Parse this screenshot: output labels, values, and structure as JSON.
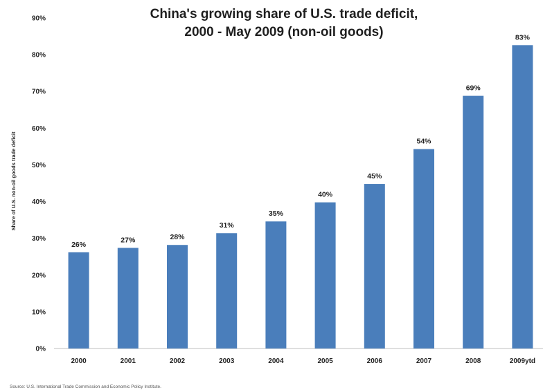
{
  "chart_data": {
    "type": "bar",
    "title_lines": [
      "China's  growing share of U.S. trade deficit,",
      "2000 - May 2009 (non-oil goods)"
    ],
    "ylabel": "Share of U.S. non-oil goods trade deficit",
    "xlabel": "",
    "ylim": [
      0,
      90
    ],
    "yticks": [
      "0%",
      "10%",
      "20%",
      "30%",
      "40%",
      "50%",
      "60%",
      "70%",
      "80%",
      "90%"
    ],
    "categories": [
      "2000",
      "2001",
      "2002",
      "2003",
      "2004",
      "2005",
      "2006",
      "2007",
      "2008",
      "2009ytd"
    ],
    "values": [
      26,
      27,
      28,
      31,
      35,
      40,
      45,
      54,
      69,
      83
    ],
    "data_labels": [
      "26%",
      "27%",
      "28%",
      "31%",
      "35%",
      "40%",
      "45%",
      "54%",
      "69%",
      "83%"
    ],
    "bar_values_exact": [
      26.2,
      27.4,
      28.2,
      31.4,
      34.6,
      39.8,
      44.8,
      54.3,
      68.8,
      82.6
    ],
    "bar_color": "#4a7ebb",
    "grid": false,
    "legend": "none",
    "source": "Source: U.S. International Trade Commission and Economic Policy Institute."
  }
}
